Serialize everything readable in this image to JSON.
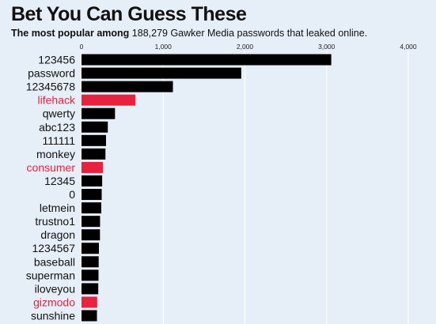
{
  "title": "Bet You Can Guess These",
  "subtitle_bold": "The most popular among",
  "subtitle_rest": " 188,279 Gawker Media passwords that leaked online.",
  "colors": {
    "default_bar": "#000000",
    "highlight_bar": "#e8213f",
    "highlight_text": "#e8213f",
    "gridline": "#ffffff",
    "background": "#e6eef8"
  },
  "chart_data": {
    "type": "bar",
    "orientation": "horizontal",
    "categories": [
      "123456",
      "password",
      "12345678",
      "lifehack",
      "qwerty",
      "abc123",
      "111111",
      "monkey",
      "consumer",
      "12345",
      "0",
      "letmein",
      "trustno1",
      "dragon",
      "1234567",
      "baseball",
      "superman",
      "iloveyou",
      "gizmodo",
      "sunshine"
    ],
    "values": [
      3057,
      1955,
      1119,
      660,
      410,
      322,
      300,
      293,
      263,
      253,
      247,
      242,
      227,
      226,
      213,
      210,
      208,
      205,
      192,
      189
    ],
    "highlighted": [
      "lifehack",
      "consumer",
      "gizmodo"
    ],
    "x_ticks": [
      "0",
      "1,000",
      "2,000",
      "3,000",
      "4,000"
    ],
    "xlim": [
      0,
      4000
    ],
    "grid": true,
    "title": "Bet You Can Guess These",
    "xlabel": "",
    "ylabel": ""
  }
}
